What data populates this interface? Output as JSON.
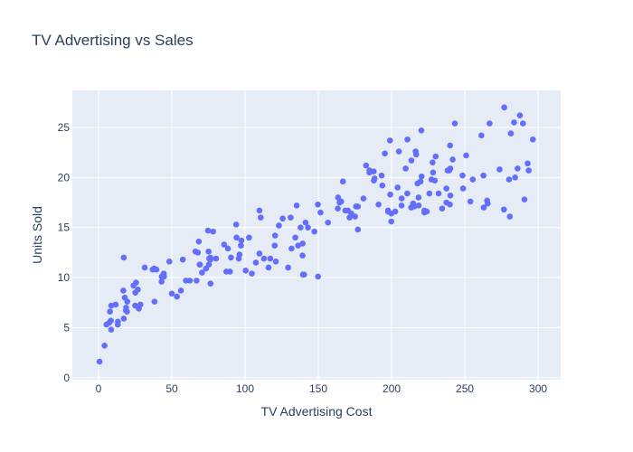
{
  "chart_data": {
    "type": "scatter",
    "title": "TV Advertising vs Sales",
    "x_label": "TV Advertising Cost",
    "y_label": "Units Sold",
    "color": "#636efa",
    "grid": true,
    "xlim": [
      -17.9,
      315.4
    ],
    "ylim": [
      -0.2,
      28.7
    ],
    "xticks": [
      0,
      50,
      100,
      150,
      200,
      250,
      300
    ],
    "yticks": [
      0,
      5,
      10,
      15,
      20,
      25
    ],
    "x": [
      230.1,
      44.5,
      17.2,
      151.5,
      180.8,
      8.7,
      57.5,
      120.2,
      8.6,
      199.8,
      66.1,
      214.7,
      23.8,
      97.5,
      204.1,
      195.4,
      67.8,
      281.4,
      69.2,
      147.3,
      218.4,
      237.4,
      13.2,
      228.3,
      62.3,
      262.9,
      142.9,
      240.1,
      248.8,
      70.6,
      292.9,
      112.9,
      97.2,
      265.6,
      95.7,
      290.7,
      266.9,
      74.7,
      43.1,
      228,
      202.5,
      177,
      293.6,
      206.9,
      25.1,
      175.1,
      89.7,
      239.9,
      227.2,
      66.9,
      199.8,
      100.4,
      216.4,
      182.6,
      262.7,
      198.9,
      7.3,
      136.2,
      210.8,
      210.7,
      53.5,
      261.3,
      239.3,
      102.7,
      131.1,
      69,
      31.5,
      139.3,
      237.4,
      216.8,
      199.1,
      109.8,
      26.8,
      129.4,
      213.4,
      16.9,
      27.5,
      120.5,
      5.4,
      116,
      76.4,
      239.8,
      75.3,
      68.4,
      213.5,
      193.2,
      76.3,
      110.7,
      88.3,
      109.8,
      134.3,
      28.6,
      217.7,
      250.9,
      107.4,
      163.3,
      197.6,
      184.9,
      289.7,
      135.2,
      222.4,
      296.4,
      280.2,
      187.9,
      238.2,
      137.9,
      25,
      90.4,
      13.1,
      255.4,
      225.8,
      241.7,
      175.7,
      209.6,
      78.2,
      75.1,
      139.2,
      76.4,
      125.7,
      19.4,
      141.3,
      18.8,
      224,
      123.1,
      229.5,
      87.2,
      7.8,
      80.2,
      220.3,
      59.6,
      0.7,
      265.2,
      8.4,
      219.8,
      36.9,
      48.3,
      25.6,
      273.7,
      43,
      184.9,
      73.4,
      193.7,
      220.5,
      104.6,
      96.2,
      140.3,
      240.1,
      243.2,
      38,
      44.7,
      280.7,
      121,
      197.6,
      171.3,
      187.8,
      4.1,
      93.9,
      149.8,
      11.7,
      131.7,
      172.5,
      85.7,
      188.4,
      163.5,
      117.2,
      234.5,
      17.9,
      206.8,
      215.4,
      284.3,
      50,
      164.5,
      19.6,
      168.4,
      222.4,
      276.9,
      248.4,
      170.2,
      276.7,
      165.6,
      156.6,
      218.5,
      56.2,
      287.6,
      253.8,
      205,
      139.5,
      191.1,
      286,
      18.7,
      39.5,
      75.5,
      17.2,
      166.8,
      149.7,
      38.2,
      94.2,
      177,
      283.6,
      232.1
    ],
    "values": [
      22.1,
      10.4,
      12,
      16.5,
      17.9,
      7.2,
      11.8,
      13.2,
      4.8,
      15.6,
      12.6,
      17.4,
      9.2,
      13.7,
      19,
      22.4,
      12.5,
      24.4,
      11.3,
      14.6,
      18,
      17.5,
      5.6,
      20.5,
      9.7,
      17,
      15,
      20.9,
      18.9,
      10.5,
      21.4,
      11.9,
      13.2,
      17.4,
      11.9,
      17.8,
      25.4,
      14.7,
      10.1,
      21.5,
      16.6,
      17.1,
      20.7,
      17.9,
      8.5,
      16.1,
      10.6,
      23.2,
      19.8,
      9.7,
      16.4,
      10.7,
      22.6,
      21.2,
      20.2,
      23.7,
      5.5,
      13.2,
      23.8,
      18.4,
      8.1,
      24.2,
      20.7,
      14,
      16,
      11.3,
      11,
      13.4,
      18.9,
      22.3,
      18.3,
      12.4,
      8.8,
      11,
      17,
      8.7,
      6.9,
      14.2,
      5.3,
      11,
      11.8,
      17.3,
      11.3,
      13.6,
      21.7,
      20.2,
      12,
      16,
      12.9,
      16.7,
      14,
      7.3,
      19.4,
      22.2,
      11.5,
      16.9,
      16.7,
      20.5,
      25.4,
      17.2,
      16.7,
      23.8,
      19.8,
      19.7,
      20.7,
      15,
      7.2,
      12,
      5.3,
      19.8,
      18.4,
      21.8,
      17.1,
      20.9,
      14.6,
      12.6,
      12.2,
      9.4,
      15.9,
      6.6,
      15.5,
      7,
      16.6,
      15.2,
      19.7,
      10.6,
      6.6,
      11.9,
      24.7,
      9.7,
      1.6,
      17.7,
      5.7,
      19.6,
      10.8,
      11.6,
      9.5,
      20.8,
      9.6,
      20.7,
      10.9,
      19.2,
      20.1,
      10.4,
      12.3,
      10.3,
      18.2,
      25.4,
      10.9,
      10.1,
      16.1,
      11.6,
      16.6,
      16,
      20.6,
      3.2,
      15.3,
      10.1,
      7.3,
      12.9,
      16.4,
      13.3,
      19.9,
      18,
      11.9,
      16.9,
      8,
      17.2,
      17.1,
      20,
      8.4,
      17.5,
      7.6,
      16.7,
      16.5,
      27,
      20.2,
      16.7,
      16.8,
      17.6,
      15.5,
      17.2,
      8.7,
      26.2,
      17.6,
      22.6,
      10.3,
      17.3,
      20.9,
      6.7,
      10.8,
      11.9,
      5.9,
      19.6,
      17.3,
      7.6,
      14,
      14.8,
      25.5,
      18.4
    ]
  }
}
